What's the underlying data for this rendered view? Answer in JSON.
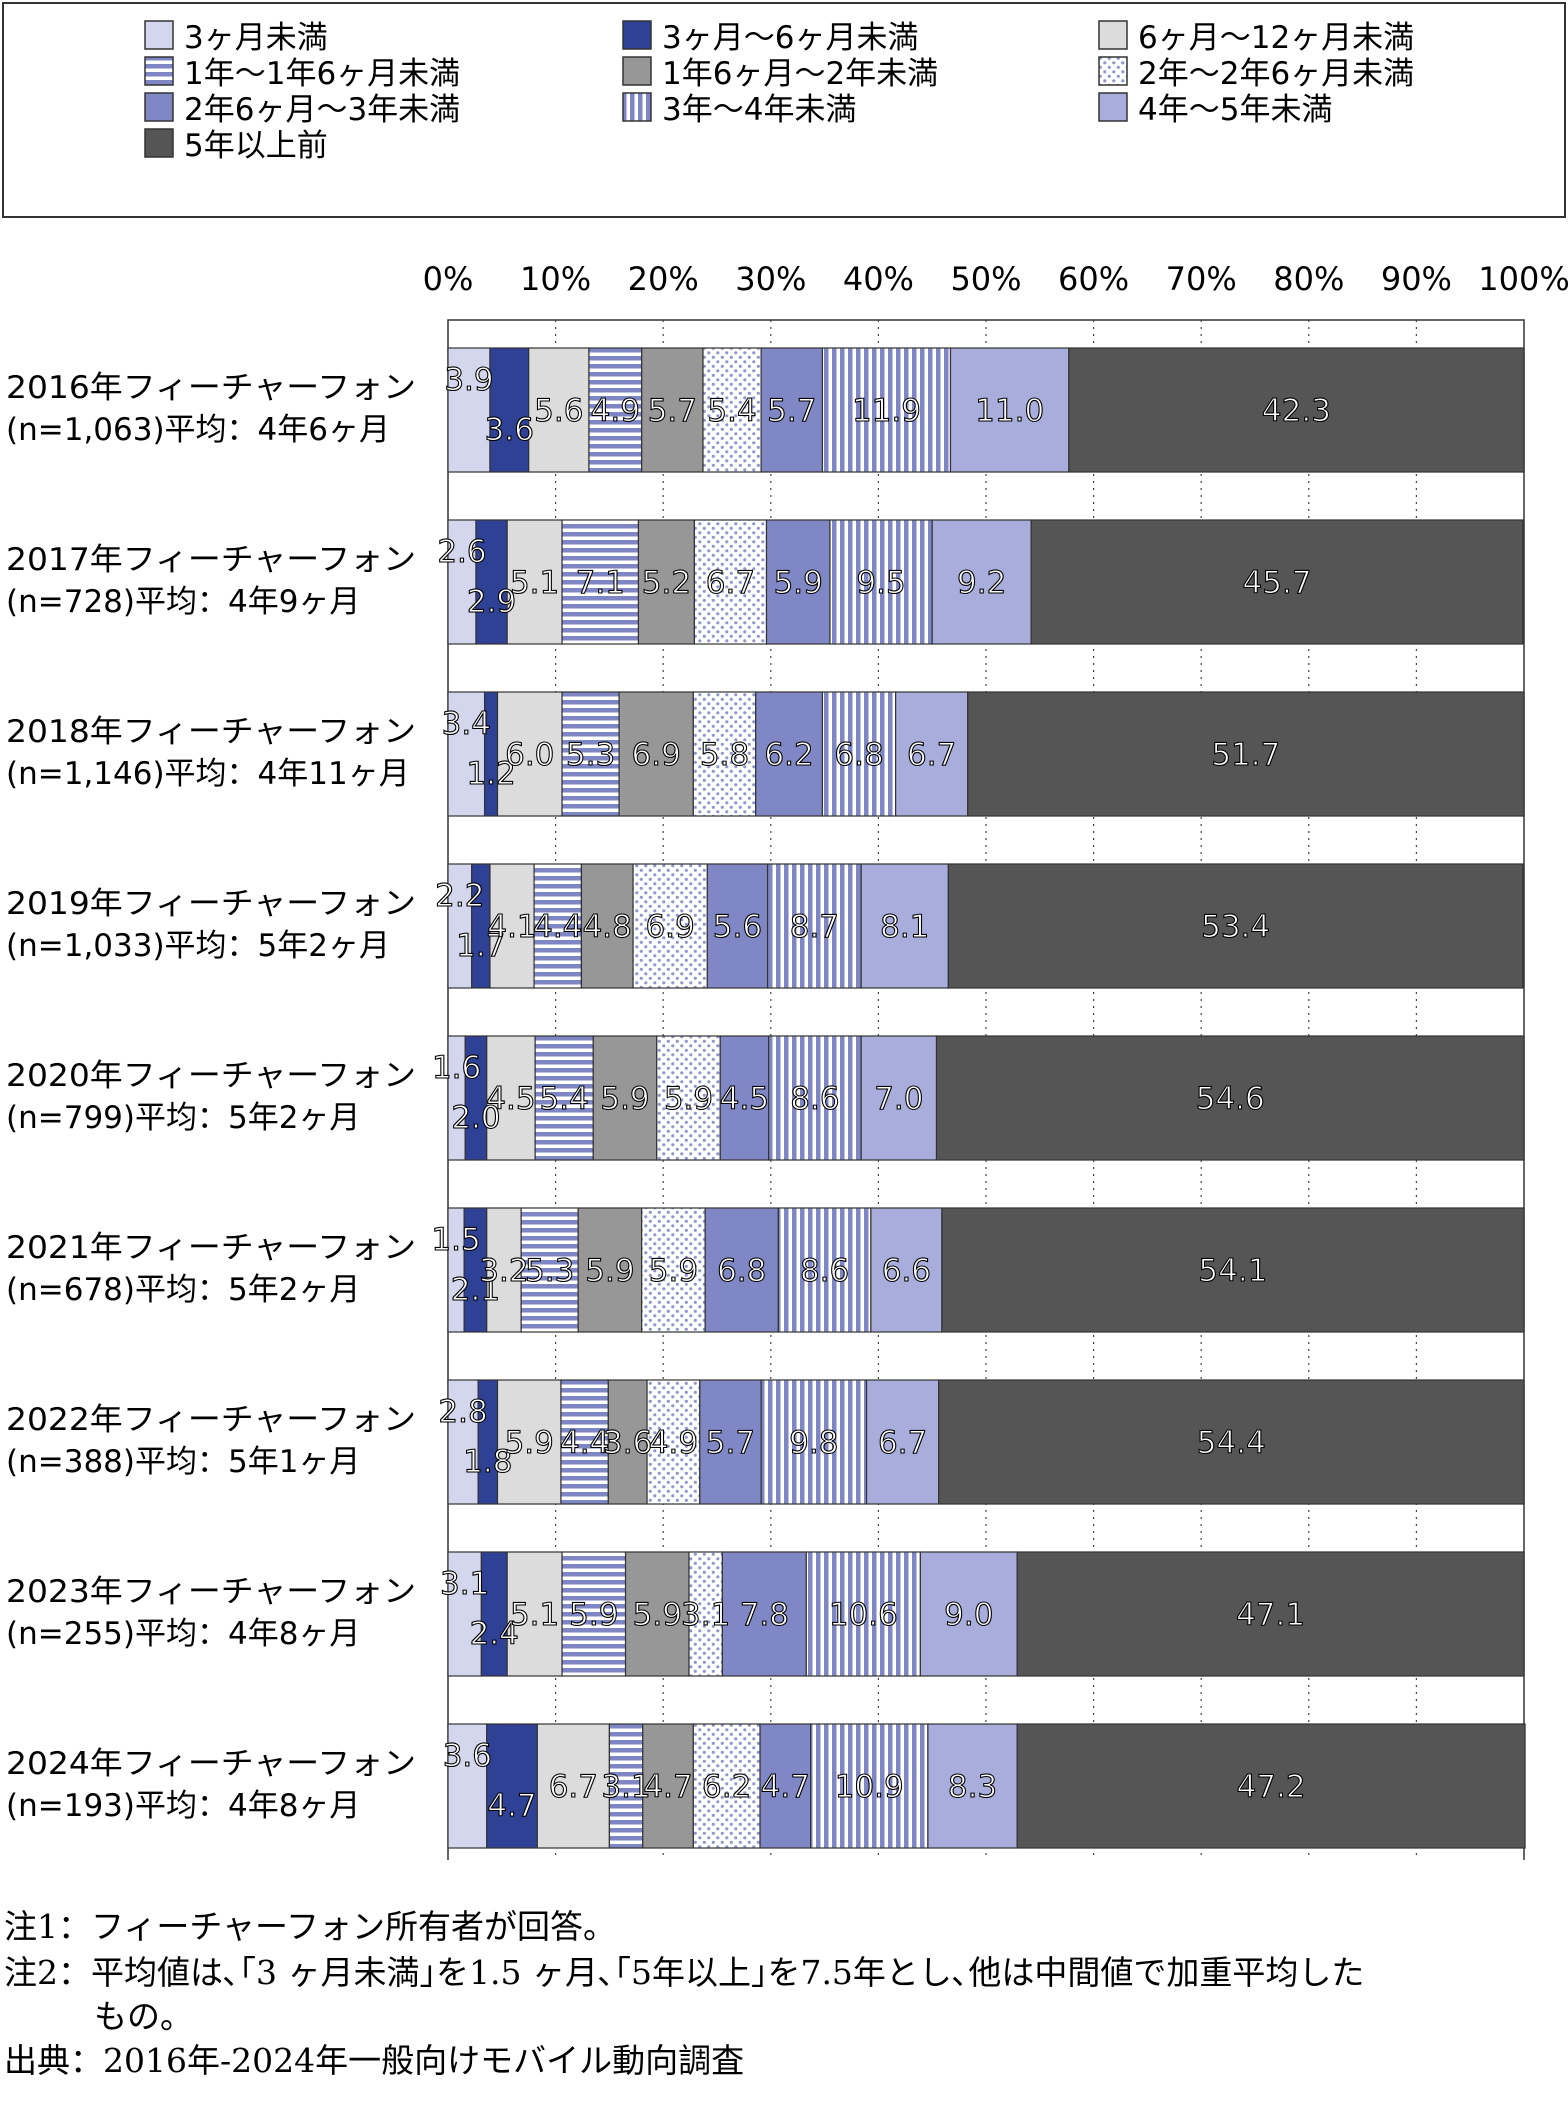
{
  "chart_data": {
    "type": "bar",
    "stacked": true,
    "orientation": "horizontal",
    "x_ticks": [
      "0%",
      "10%",
      "20%",
      "30%",
      "40%",
      "50%",
      "60%",
      "70%",
      "80%",
      "90%",
      "100%"
    ],
    "xlim": [
      0,
      100
    ],
    "grid": "dotted vertical",
    "legend_placement": "top",
    "categories": [
      "2016年フィーチャーフォン|(n=1,063)平均：4年6ヶ月",
      "2017年フィーチャーフォン|(n=728)平均：4年9ヶ月",
      "2018年フィーチャーフォン|(n=1,146)平均：4年11ヶ月",
      "2019年フィーチャーフォン|(n=1,033)平均：5年2ヶ月",
      "2020年フィーチャーフォン|(n=799)平均：5年2ヶ月",
      "2021年フィーチャーフォン|(n=678)平均：5年2ヶ月",
      "2022年フィーチャーフォン|(n=388)平均：5年1ヶ月",
      "2023年フィーチャーフォン|(n=255)平均：4年8ヶ月",
      "2024年フィーチャーフォン|(n=193)平均：4年8ヶ月"
    ],
    "series": [
      {
        "name": "3ヶ月未満",
        "pattern": "solid",
        "color": "#d4d6ee",
        "values": [
          3.9,
          2.6,
          3.4,
          2.2,
          1.6,
          1.5,
          2.8,
          3.1,
          3.6
        ]
      },
      {
        "name": "3ヶ月～6ヶ月未満",
        "pattern": "solid",
        "color": "#2e4195",
        "values": [
          3.6,
          2.9,
          1.2,
          1.7,
          2.0,
          2.1,
          1.8,
          2.4,
          4.7
        ]
      },
      {
        "name": "6ヶ月～12ヶ月未満",
        "pattern": "solid",
        "color": "#dcdcdc",
        "values": [
          5.6,
          5.1,
          6.0,
          4.1,
          4.5,
          3.2,
          5.9,
          5.1,
          6.7
        ]
      },
      {
        "name": "1年～1年6ヶ月未満",
        "pattern": "hstripe",
        "color": "#7e86c4",
        "values": [
          4.9,
          7.1,
          5.3,
          4.4,
          5.4,
          5.3,
          4.4,
          5.9,
          3.1
        ]
      },
      {
        "name": "1年6ヶ月～2年未満",
        "pattern": "solid",
        "color": "#979797",
        "values": [
          5.7,
          5.2,
          6.9,
          4.8,
          5.9,
          5.9,
          3.6,
          5.9,
          4.7
        ]
      },
      {
        "name": "2年～2年6ヶ月未満",
        "pattern": "dots",
        "color": "#8f97cc",
        "values": [
          5.4,
          6.7,
          5.8,
          6.9,
          5.9,
          5.9,
          4.9,
          3.1,
          6.2
        ]
      },
      {
        "name": "2年6ヶ月～3年未満",
        "pattern": "solid",
        "color": "#7f88c4",
        "values": [
          5.7,
          5.9,
          6.2,
          5.6,
          4.5,
          6.8,
          5.7,
          7.8,
          4.7
        ]
      },
      {
        "name": "3年～4年未満",
        "pattern": "vstripe",
        "color": "#7e86c4",
        "values": [
          11.9,
          9.5,
          6.8,
          8.7,
          8.6,
          8.6,
          9.8,
          10.6,
          10.9
        ]
      },
      {
        "name": "4年～5年未満",
        "pattern": "solid",
        "color": "#a9addb",
        "values": [
          11.0,
          9.2,
          6.7,
          8.1,
          7.0,
          6.6,
          6.7,
          9.0,
          8.3
        ]
      },
      {
        "name": "5年以上前",
        "pattern": "solid",
        "color": "#555555",
        "values": [
          42.3,
          45.7,
          51.7,
          53.4,
          54.6,
          54.1,
          54.4,
          47.1,
          47.2
        ]
      }
    ]
  },
  "notes": {
    "note1": "注1：フィーチャーフォン所有者が回答。",
    "note2_line1": "注2：平均値は､｢3 ヶ月未満｣を1.5 ヶ月､｢5年以上｣を7.5年とし､他は中間値で加重平均した",
    "note2_line2": "もの。",
    "source": "出典：2016年-2024年一般向けモバイル動向調査"
  }
}
